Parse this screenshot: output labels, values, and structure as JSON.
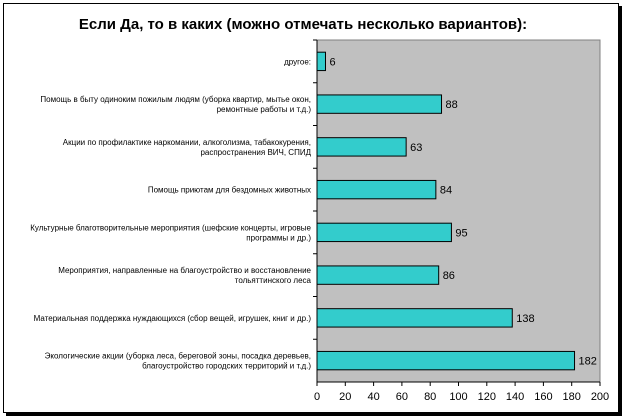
{
  "chart_data": {
    "type": "bar",
    "orientation": "horizontal",
    "title": "Если Да, то в каких (можно отмечать несколько  вариантов):",
    "categories": [
      [
        "другое:"
      ],
      [
        "Помощь в быту одиноким пожилым людям (уборка квартир,  мытье окон,",
        "ремонтные работы и т.д.)"
      ],
      [
        "Акции по профилактике наркомании, алкоголизма, табакокурения,",
        "распространения ВИЧ, СПИД"
      ],
      [
        "Помощь приютам для бездомных животных"
      ],
      [
        "Культурные благотворительные мероприятия (шефские концерты, игровые",
        "программы и др.)"
      ],
      [
        "Мероприятия, направленные на благоустройство и восстановление",
        "тольяттинского леса"
      ],
      [
        "Материальная поддержка нуждающихся (сбор вещей, игрушек, книг и др.)"
      ],
      [
        "Экологические акции (уборка леса, береговой зоны, посадка деревьев,",
        "благоустройство городских территорий и т.д.)"
      ]
    ],
    "values": [
      6,
      88,
      63,
      84,
      95,
      86,
      138,
      182
    ],
    "xlim": [
      0,
      200
    ],
    "xticks": [
      0,
      20,
      40,
      60,
      80,
      100,
      120,
      140,
      160,
      180,
      200
    ],
    "bar_color": "#33CCCC",
    "plot_background": "#C0C0C0",
    "grid": false,
    "legend": "none"
  }
}
